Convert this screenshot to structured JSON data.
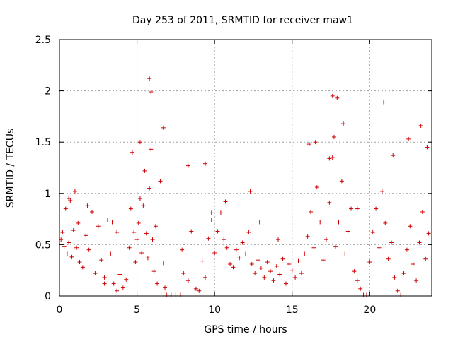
{
  "chart_data": {
    "type": "scatter",
    "title": "Day 253 of 2011, SRMTID for receiver maw1",
    "xlabel": "GPS time / hours",
    "ylabel": "SRMTID / TECUs",
    "xlim": [
      0,
      24
    ],
    "ylim": [
      0,
      2.5
    ],
    "xticks": [
      0,
      5,
      10,
      15,
      20
    ],
    "yticks": [
      0,
      0.5,
      1,
      1.5,
      2,
      2.5
    ],
    "xtick_labels": [
      "0",
      "5",
      "10",
      "15",
      "20"
    ],
    "ytick_labels": [
      "0",
      "0.5",
      "1",
      "1.5",
      "2",
      "2.5"
    ],
    "grid": true,
    "marker": "+",
    "point_color": "#cc0000",
    "series": [
      {
        "name": "SRMTID",
        "x": [
          0.1,
          0.2,
          0.3,
          0.4,
          0.5,
          0.6,
          0.7,
          0.8,
          0.9,
          1.0,
          1.1,
          1.2,
          1.3,
          1.5,
          1.7,
          1.9,
          2.1,
          2.3,
          2.5,
          2.7,
          2.9,
          3.1,
          3.3,
          3.5,
          3.7,
          3.9,
          4.1,
          4.3,
          4.5,
          4.6,
          4.7,
          4.8,
          4.9,
          5.0,
          5.1,
          5.2,
          5.3,
          5.4,
          5.5,
          5.6,
          5.7,
          5.8,
          5.9,
          6.0,
          6.1,
          6.2,
          6.3,
          6.5,
          6.7,
          6.8,
          6.9,
          7.0,
          7.2,
          7.5,
          7.8,
          8.0,
          8.1,
          8.3,
          8.5,
          8.8,
          9.0,
          9.2,
          9.4,
          9.6,
          9.8,
          10.0,
          10.2,
          10.4,
          10.6,
          10.8,
          11.0,
          11.2,
          11.4,
          11.6,
          11.8,
          12.0,
          12.2,
          12.4,
          12.6,
          12.8,
          13.0,
          13.2,
          13.4,
          13.6,
          13.8,
          14.0,
          14.2,
          14.4,
          14.6,
          14.8,
          15.0,
          15.2,
          15.4,
          15.6,
          15.8,
          16.0,
          16.2,
          16.4,
          16.6,
          16.8,
          17.0,
          17.2,
          17.4,
          17.6,
          17.8,
          18.0,
          18.2,
          18.4,
          18.6,
          18.8,
          19.0,
          19.2,
          19.4,
          19.6,
          19.8,
          20.0,
          20.2,
          20.4,
          20.6,
          20.8,
          21.0,
          21.2,
          21.4,
          21.6,
          21.8,
          22.0,
          22.2,
          22.4,
          22.6,
          22.8,
          23.0,
          23.2,
          23.4,
          23.6,
          23.8,
          17.6,
          17.9,
          17.7,
          5.9,
          5.8,
          20.9,
          23.3,
          22.5,
          0.6,
          1.8,
          3.4,
          6.7,
          8.3,
          9.4,
          12.3,
          16.1,
          16.5,
          17.4,
          18.3,
          21.5,
          23.7,
          3.7,
          5.2,
          9.8,
          12.9,
          19.2,
          14.1,
          10.7,
          2.9,
          7.9
        ],
        "y": [
          0.55,
          0.62,
          0.48,
          0.85,
          0.41,
          0.52,
          0.93,
          0.38,
          0.64,
          1.02,
          0.47,
          0.71,
          0.33,
          0.28,
          0.59,
          0.45,
          0.82,
          0.22,
          0.68,
          0.35,
          0.18,
          0.74,
          0.41,
          0.12,
          0.05,
          0.21,
          0.08,
          0.16,
          0.47,
          0.85,
          1.4,
          0.62,
          0.33,
          0.55,
          0.71,
          0.95,
          0.42,
          0.88,
          1.22,
          0.61,
          0.37,
          1.05,
          1.43,
          0.55,
          0.24,
          0.68,
          0.12,
          1.12,
          0.32,
          0.08,
          0.01,
          0.01,
          0.01,
          0.01,
          0.01,
          0.22,
          0.41,
          0.15,
          0.63,
          0.07,
          0.05,
          0.34,
          0.18,
          0.56,
          0.74,
          0.42,
          0.63,
          0.81,
          0.55,
          0.47,
          0.31,
          0.28,
          0.45,
          0.37,
          0.52,
          0.41,
          0.62,
          0.31,
          0.22,
          0.35,
          0.27,
          0.18,
          0.33,
          0.24,
          0.15,
          0.29,
          0.21,
          0.36,
          0.12,
          0.31,
          0.25,
          0.18,
          0.34,
          0.22,
          0.41,
          0.58,
          0.82,
          0.47,
          1.06,
          0.72,
          0.35,
          0.55,
          0.91,
          1.35,
          0.48,
          0.72,
          1.12,
          0.41,
          0.63,
          0.85,
          0.24,
          0.15,
          0.07,
          0.01,
          0.01,
          0.33,
          0.62,
          0.85,
          0.47,
          1.02,
          0.71,
          0.36,
          0.52,
          0.18,
          0.05,
          0.01,
          0.22,
          0.45,
          0.68,
          0.31,
          0.15,
          0.52,
          0.82,
          0.36,
          0.61,
          1.95,
          1.93,
          1.55,
          1.99,
          2.12,
          1.89,
          1.66,
          1.53,
          0.95,
          0.88,
          0.72,
          1.64,
          1.27,
          1.29,
          1.02,
          1.48,
          1.5,
          1.34,
          1.68,
          1.37,
          1.45,
          0.62,
          1.5,
          0.81,
          0.72,
          0.85,
          0.55,
          0.92,
          0.12,
          0.45
        ]
      }
    ]
  }
}
